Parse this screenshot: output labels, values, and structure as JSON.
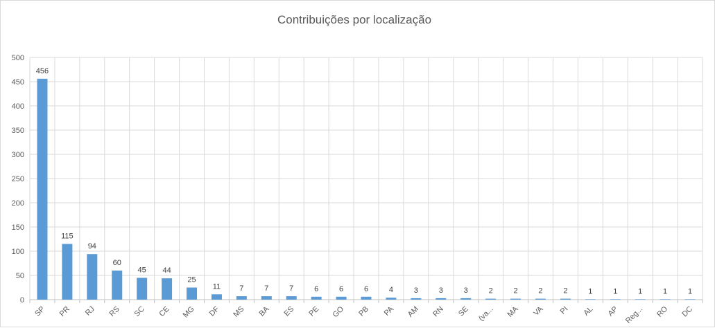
{
  "chart_data": {
    "type": "bar",
    "title": "Contribuições por localização",
    "xlabel": "",
    "ylabel": "",
    "ylim": [
      0,
      500
    ],
    "yticks": [
      0,
      50,
      100,
      150,
      200,
      250,
      300,
      350,
      400,
      450,
      500
    ],
    "grid": true,
    "legend": "none",
    "bar_color": "#5b9bd5",
    "categories": [
      "SP",
      "PR",
      "RJ",
      "RS",
      "SC",
      "CE",
      "MG",
      "DF",
      "MS",
      "BA",
      "ES",
      "PE",
      "GO",
      "PB",
      "PA",
      "AM",
      "RN",
      "SE",
      "(va...",
      "MA",
      "VA",
      "PI",
      "AL",
      "AP",
      "Reg...",
      "RO",
      "DC"
    ],
    "values": [
      456,
      115,
      94,
      60,
      45,
      44,
      25,
      11,
      7,
      7,
      7,
      6,
      6,
      6,
      4,
      3,
      3,
      3,
      2,
      2,
      2,
      2,
      1,
      1,
      1,
      1,
      1
    ]
  }
}
